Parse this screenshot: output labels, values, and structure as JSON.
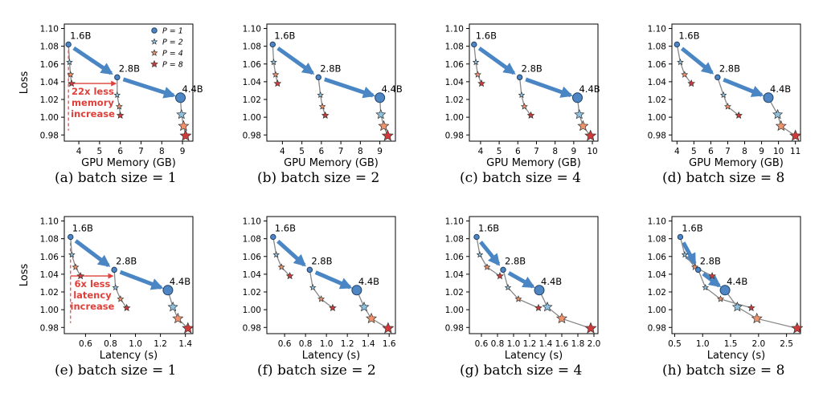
{
  "figure": {
    "legend": [
      {
        "label": "P = 1",
        "marker": "circle",
        "color": "#4e86c4"
      },
      {
        "label": "P = 2",
        "marker": "star",
        "color": "#8ec1e0"
      },
      {
        "label": "P = 4",
        "marker": "star",
        "color": "#f0926b"
      },
      {
        "label": "P = 8",
        "marker": "star",
        "color": "#cf3a3a"
      }
    ],
    "colors": {
      "arrow": "#4a86c4",
      "line": "#888888",
      "annotation": "#e0403a"
    }
  },
  "chart_data": [
    {
      "type": "scatter",
      "caption": "(a)  batch size = 1",
      "xlabel": "GPU Memory (GB)",
      "ylabel": "Loss",
      "xlim": [
        3.3,
        9.5
      ],
      "ylim": [
        0.973,
        1.105
      ],
      "xticks": [
        4,
        5,
        6,
        7,
        8,
        9
      ],
      "yticks": [
        0.98,
        1.0,
        1.02,
        1.04,
        1.06,
        1.08,
        1.1
      ],
      "models": [
        {
          "name": "1.6B",
          "points": [
            [
              3.5,
              1.082
            ],
            [
              3.55,
              1.062
            ],
            [
              3.6,
              1.048
            ],
            [
              3.65,
              1.038
            ]
          ]
        },
        {
          "name": "2.8B",
          "points": [
            [
              5.85,
              1.045
            ],
            [
              5.85,
              1.025
            ],
            [
              5.95,
              1.012
            ],
            [
              6.0,
              1.002
            ]
          ]
        },
        {
          "name": "4.4B",
          "points": [
            [
              8.9,
              1.022
            ],
            [
              8.95,
              1.003
            ],
            [
              9.05,
              0.99
            ],
            [
              9.15,
              0.979
            ]
          ]
        }
      ],
      "annotation": {
        "lines": [
          "22x less",
          "memory",
          "increase"
        ],
        "arrow_from": [
          3.5,
          1.038
        ],
        "arrow_to": [
          5.85,
          1.038
        ],
        "drop_from": [
          3.5,
          1.082
        ],
        "drop_to": [
          3.5,
          0.985
        ]
      }
    },
    {
      "type": "scatter",
      "caption": "(b)  batch size = 2",
      "xlabel": "GPU Memory (GB)",
      "ylabel": "",
      "xlim": [
        3.2,
        9.8
      ],
      "ylim": [
        0.973,
        1.105
      ],
      "xticks": [
        4,
        5,
        6,
        7,
        8,
        9
      ],
      "yticks": [
        0.98,
        1.0,
        1.02,
        1.04,
        1.06,
        1.08,
        1.1
      ],
      "models": [
        {
          "name": "1.6B",
          "points": [
            [
              3.5,
              1.082
            ],
            [
              3.55,
              1.062
            ],
            [
              3.65,
              1.048
            ],
            [
              3.75,
              1.038
            ]
          ]
        },
        {
          "name": "2.8B",
          "points": [
            [
              5.85,
              1.045
            ],
            [
              5.95,
              1.025
            ],
            [
              6.05,
              1.012
            ],
            [
              6.2,
              1.002
            ]
          ]
        },
        {
          "name": "4.4B",
          "points": [
            [
              9.0,
              1.022
            ],
            [
              9.05,
              1.003
            ],
            [
              9.2,
              0.99
            ],
            [
              9.4,
              0.979
            ]
          ]
        }
      ]
    },
    {
      "type": "scatter",
      "caption": "(c)  batch size = 4",
      "xlabel": "GPU Memory (GB)",
      "ylabel": "",
      "xlim": [
        3.4,
        10.3
      ],
      "ylim": [
        0.973,
        1.105
      ],
      "xticks": [
        4,
        5,
        6,
        7,
        8,
        9,
        10
      ],
      "yticks": [
        0.98,
        1.0,
        1.02,
        1.04,
        1.06,
        1.08,
        1.1
      ],
      "models": [
        {
          "name": "1.6B",
          "points": [
            [
              3.65,
              1.082
            ],
            [
              3.75,
              1.062
            ],
            [
              3.85,
              1.048
            ],
            [
              4.05,
              1.038
            ]
          ]
        },
        {
          "name": "2.8B",
          "points": [
            [
              6.1,
              1.045
            ],
            [
              6.2,
              1.025
            ],
            [
              6.35,
              1.012
            ],
            [
              6.7,
              1.002
            ]
          ]
        },
        {
          "name": "4.4B",
          "points": [
            [
              9.2,
              1.022
            ],
            [
              9.3,
              1.003
            ],
            [
              9.5,
              0.99
            ],
            [
              9.9,
              0.979
            ]
          ]
        }
      ]
    },
    {
      "type": "scatter",
      "caption": "(d)  batch size = 8",
      "xlabel": "GPU Memory (GB)",
      "ylabel": "",
      "xlim": [
        3.7,
        11.3
      ],
      "ylim": [
        0.973,
        1.105
      ],
      "xticks": [
        4,
        5,
        6,
        7,
        8,
        9,
        10,
        11
      ],
      "yticks": [
        0.98,
        1.0,
        1.02,
        1.04,
        1.06,
        1.08,
        1.1
      ],
      "models": [
        {
          "name": "1.6B",
          "points": [
            [
              4.0,
              1.082
            ],
            [
              4.2,
              1.062
            ],
            [
              4.45,
              1.048
            ],
            [
              4.85,
              1.038
            ]
          ]
        },
        {
          "name": "2.8B",
          "points": [
            [
              6.4,
              1.045
            ],
            [
              6.75,
              1.025
            ],
            [
              7.0,
              1.012
            ],
            [
              7.65,
              1.002
            ]
          ]
        },
        {
          "name": "4.4B",
          "points": [
            [
              9.4,
              1.022
            ],
            [
              9.95,
              1.003
            ],
            [
              10.15,
              0.99
            ],
            [
              11.0,
              0.979
            ]
          ]
        }
      ]
    },
    {
      "type": "scatter",
      "caption": "(e)  batch size = 1",
      "xlabel": "Latency (s)",
      "ylabel": "Loss",
      "xlim": [
        0.43,
        1.46
      ],
      "ylim": [
        0.973,
        1.105
      ],
      "xticks": [
        0.6,
        0.8,
        1.0,
        1.2,
        1.4
      ],
      "yticks": [
        0.98,
        1.0,
        1.02,
        1.04,
        1.06,
        1.08,
        1.1
      ],
      "models": [
        {
          "name": "1.6B",
          "points": [
            [
              0.48,
              1.082
            ],
            [
              0.49,
              1.062
            ],
            [
              0.52,
              1.048
            ],
            [
              0.56,
              1.038
            ]
          ]
        },
        {
          "name": "2.8B",
          "points": [
            [
              0.83,
              1.045
            ],
            [
              0.84,
              1.025
            ],
            [
              0.88,
              1.012
            ],
            [
              0.93,
              1.002
            ]
          ]
        },
        {
          "name": "4.4B",
          "points": [
            [
              1.26,
              1.022
            ],
            [
              1.3,
              1.003
            ],
            [
              1.34,
              0.99
            ],
            [
              1.42,
              0.979
            ]
          ]
        }
      ],
      "annotation": {
        "lines": [
          "6x less",
          "latency",
          "increase"
        ],
        "arrow_from": [
          0.48,
          1.038
        ],
        "arrow_to": [
          0.83,
          1.038
        ],
        "drop_from": [
          0.48,
          1.082
        ],
        "drop_to": [
          0.48,
          0.985
        ]
      }
    },
    {
      "type": "scatter",
      "caption": "(f)  batch size = 2",
      "xlabel": "Latency (s)",
      "ylabel": "",
      "xlim": [
        0.43,
        1.66
      ],
      "ylim": [
        0.973,
        1.105
      ],
      "xticks": [
        0.6,
        0.8,
        1.0,
        1.2,
        1.4,
        1.6
      ],
      "yticks": [
        0.98,
        1.0,
        1.02,
        1.04,
        1.06,
        1.08,
        1.1
      ],
      "models": [
        {
          "name": "1.6B",
          "points": [
            [
              0.49,
              1.082
            ],
            [
              0.52,
              1.062
            ],
            [
              0.57,
              1.048
            ],
            [
              0.65,
              1.038
            ]
          ]
        },
        {
          "name": "2.8B",
          "points": [
            [
              0.84,
              1.045
            ],
            [
              0.87,
              1.025
            ],
            [
              0.95,
              1.012
            ],
            [
              1.06,
              1.002
            ]
          ]
        },
        {
          "name": "4.4B",
          "points": [
            [
              1.29,
              1.022
            ],
            [
              1.36,
              1.003
            ],
            [
              1.43,
              0.99
            ],
            [
              1.59,
              0.979
            ]
          ]
        }
      ]
    },
    {
      "type": "scatter",
      "caption": "(g)  batch size = 4",
      "xlabel": "Latency (s)",
      "ylabel": "",
      "xlim": [
        0.45,
        2.05
      ],
      "ylim": [
        0.973,
        1.105
      ],
      "xticks": [
        0.6,
        0.8,
        1.0,
        1.2,
        1.4,
        1.6,
        1.8,
        2.0
      ],
      "yticks": [
        0.98,
        1.0,
        1.02,
        1.04,
        1.06,
        1.08,
        1.1
      ],
      "models": [
        {
          "name": "1.6B",
          "points": [
            [
              0.54,
              1.082
            ],
            [
              0.58,
              1.062
            ],
            [
              0.67,
              1.048
            ],
            [
              0.83,
              1.038
            ]
          ]
        },
        {
          "name": "2.8B",
          "points": [
            [
              0.87,
              1.045
            ],
            [
              0.93,
              1.025
            ],
            [
              1.06,
              1.012
            ],
            [
              1.31,
              1.002
            ]
          ]
        },
        {
          "name": "4.4B",
          "points": [
            [
              1.32,
              1.022
            ],
            [
              1.42,
              1.003
            ],
            [
              1.6,
              0.99
            ],
            [
              1.96,
              0.979
            ]
          ]
        }
      ]
    },
    {
      "type": "scatter",
      "caption": "(h)  batch size = 8",
      "xlabel": "Latency (s)",
      "ylabel": "",
      "xlim": [
        0.45,
        2.75
      ],
      "ylim": [
        0.973,
        1.105
      ],
      "xticks": [
        0.5,
        1.0,
        1.5,
        2.0,
        2.5
      ],
      "yticks": [
        0.98,
        1.0,
        1.02,
        1.04,
        1.06,
        1.08,
        1.1
      ],
      "models": [
        {
          "name": "1.6B",
          "points": [
            [
              0.6,
              1.082
            ],
            [
              0.68,
              1.062
            ],
            [
              0.86,
              1.048
            ],
            [
              1.17,
              1.038
            ]
          ]
        },
        {
          "name": "2.8B",
          "points": [
            [
              0.92,
              1.045
            ],
            [
              1.05,
              1.025
            ],
            [
              1.32,
              1.012
            ],
            [
              1.87,
              1.002
            ]
          ]
        },
        {
          "name": "4.4B",
          "points": [
            [
              1.4,
              1.022
            ],
            [
              1.62,
              1.003
            ],
            [
              1.97,
              0.99
            ],
            [
              2.69,
              0.979
            ]
          ]
        }
      ]
    }
  ]
}
